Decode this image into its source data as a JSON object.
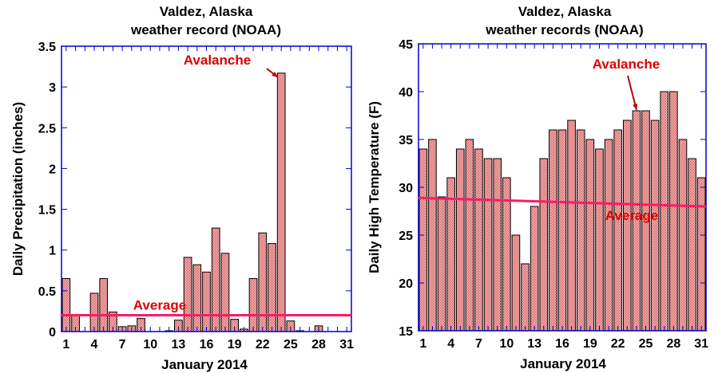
{
  "chart_data": [
    {
      "type": "bar",
      "title": [
        "Valdez, Alaska",
        "weather record (NOAA)"
      ],
      "xlabel": "January 2014",
      "ylabel": "Daily Precipitation (inches)",
      "xlim": [
        0.5,
        31.5
      ],
      "ylim": [
        0,
        3.5
      ],
      "yticks": [
        0,
        0.5,
        1,
        1.5,
        2,
        2.5,
        3,
        3.5
      ],
      "ytick_labels": [
        "0",
        "0.5",
        "1",
        "1.5",
        "2",
        "2.5",
        "3",
        "3.5"
      ],
      "xticks": [
        1,
        4,
        7,
        10,
        13,
        16,
        19,
        22,
        25,
        28,
        31
      ],
      "x": [
        1,
        2,
        3,
        4,
        5,
        6,
        7,
        8,
        9,
        10,
        11,
        12,
        13,
        14,
        15,
        16,
        17,
        18,
        19,
        20,
        21,
        22,
        23,
        24,
        25,
        26,
        27,
        28,
        29,
        30,
        31
      ],
      "values": [
        0.65,
        0.21,
        0,
        0.47,
        0.65,
        0.24,
        0.06,
        0.07,
        0.16,
        0,
        0,
        0.01,
        0.14,
        0.91,
        0.82,
        0.73,
        1.27,
        0.96,
        0.15,
        0.03,
        0.65,
        1.21,
        1.08,
        3.17,
        0.13,
        0.01,
        0,
        0.07,
        0,
        0,
        0
      ],
      "average": {
        "label": "Average",
        "start": 0.2,
        "end": 0.2
      },
      "annotation": {
        "text": "Avalanche",
        "day": 24
      },
      "grid": false,
      "colors": {
        "bar": "#cc2222",
        "axis": "#0000cc",
        "average": "#ff1a66",
        "annotation": "#dd0000"
      }
    },
    {
      "type": "bar",
      "title": [
        "Valdez, Alaska",
        "weather records (NOAA)"
      ],
      "xlabel": "January 2014",
      "ylabel": "Daily High Temperature (F)",
      "xlim": [
        0.5,
        31.5
      ],
      "ylim": [
        15,
        45
      ],
      "yticks": [
        15,
        20,
        25,
        30,
        35,
        40,
        45
      ],
      "ytick_labels": [
        "15",
        "20",
        "25",
        "30",
        "35",
        "40",
        "45"
      ],
      "xticks": [
        1,
        4,
        7,
        10,
        13,
        16,
        19,
        22,
        25,
        28,
        31
      ],
      "x": [
        1,
        2,
        3,
        4,
        5,
        6,
        7,
        8,
        9,
        10,
        11,
        12,
        13,
        14,
        15,
        16,
        17,
        18,
        19,
        20,
        21,
        22,
        23,
        24,
        25,
        26,
        27,
        28,
        29,
        30,
        31
      ],
      "values": [
        34,
        35,
        29,
        31,
        34,
        35,
        34,
        33,
        33,
        31,
        25,
        22,
        28,
        33,
        36,
        36,
        37,
        36,
        35,
        34,
        35,
        36,
        37,
        38,
        38,
        37,
        40,
        40,
        35,
        33,
        31
      ],
      "average": {
        "label": "Average",
        "start": 28.9,
        "end": 28.0
      },
      "annotation": {
        "text": "Avalanche",
        "day": 24
      },
      "grid": false,
      "colors": {
        "bar": "#cc2222",
        "axis": "#0000cc",
        "average": "#ff1a66",
        "annotation": "#dd0000"
      }
    }
  ]
}
